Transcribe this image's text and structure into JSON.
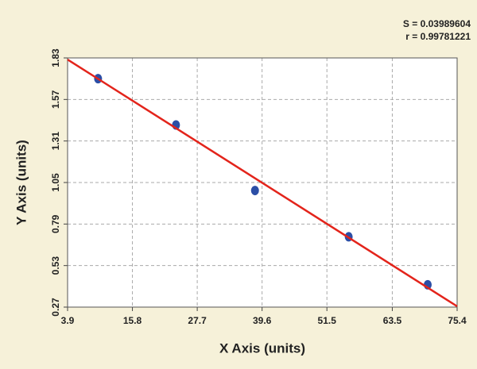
{
  "chart_data": {
    "type": "scatter",
    "xlabel": "X Axis (units)",
    "ylabel": "Y Axis (units)",
    "annotations": [
      "S = 0.03989604",
      "r = 0.99781221"
    ],
    "xlim": [
      3.9,
      75.4
    ],
    "xticks": [
      3.9,
      15.8,
      27.7,
      39.6,
      51.5,
      63.5,
      75.4
    ],
    "ylim": [
      0.27,
      1.83
    ],
    "yticks": [
      0.27,
      0.53,
      0.79,
      1.05,
      1.31,
      1.57,
      1.83
    ],
    "grid": true,
    "series": [
      {
        "mode": "markers",
        "color": "#2b4ea6",
        "x": [
          9.5,
          23.8,
          38.3,
          55.5,
          70.0
        ],
        "values": [
          1.7,
          1.41,
          1.0,
          0.71,
          0.41
        ]
      },
      {
        "mode": "line",
        "color": "#e3241b",
        "x": [
          3.9,
          75.4
        ],
        "values": [
          1.82,
          0.275
        ]
      }
    ]
  }
}
